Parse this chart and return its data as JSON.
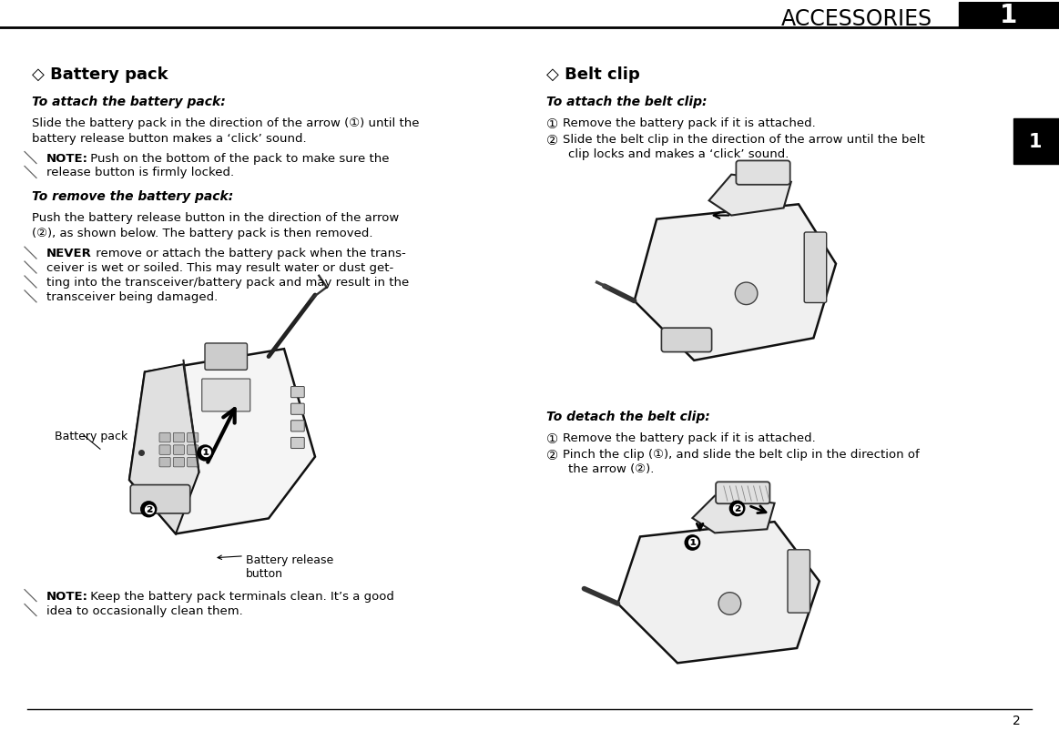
{
  "bg_color": "#ffffff",
  "header_text": "ACCESSORIES",
  "header_chapter": "1",
  "footer_page_num": "2",
  "section_battery_title": "◇ Battery pack",
  "section_belt_title": "◇ Belt clip",
  "attach_battery_heading": "To attach the battery pack:",
  "note1_bold": "NOTE:",
  "note1_line1": " Push on the bottom of the pack to make sure the",
  "note1_line2": "release button is firmly locked.",
  "remove_battery_heading": "To remove the battery pack:",
  "warning_bold": "NEVER",
  "warning_line1": " remove or attach the battery pack when the trans-",
  "warning_line2": "ceiver is wet or soiled. This may result water or dust get-",
  "warning_line3": "ting into the transceiver/battery pack and may result in the",
  "warning_line4": "transceiver being damaged.",
  "note2_bold": "NOTE:",
  "note2_line1": " Keep the battery pack terminals clean. It’s a good",
  "note2_line2": "idea to occasionally clean them.",
  "attach_belt_heading": "To attach the belt clip:",
  "detach_belt_heading": "To detach the belt clip:",
  "label_battery_pack": "Battery pack",
  "label_battery_release": "Battery release\nbutton",
  "body_fs": 9.5,
  "heading_fs": 10,
  "title_fs": 13,
  "header_fs": 17,
  "circle1": "①",
  "circle2": "②",
  "hatch_color": "#666666",
  "text_color": "#000000",
  "line_color": "#000000"
}
